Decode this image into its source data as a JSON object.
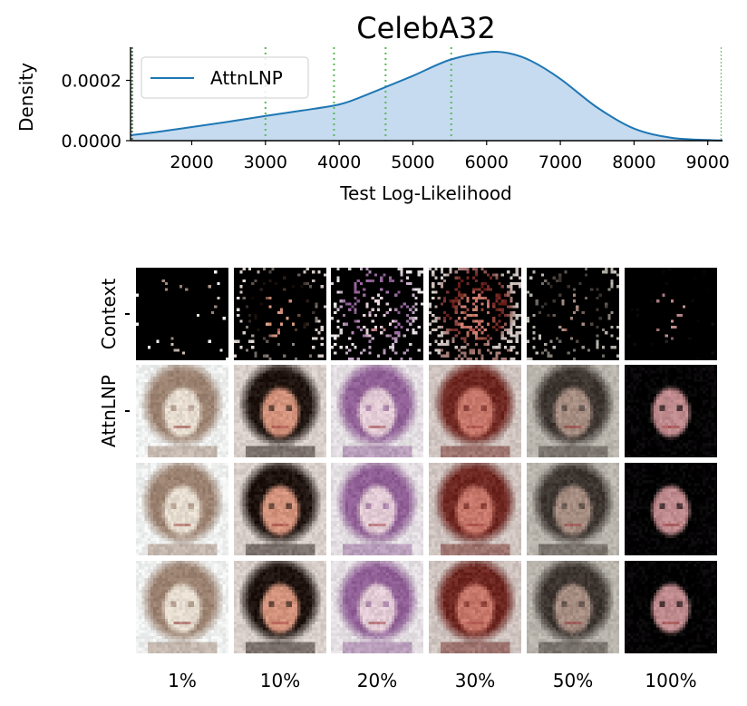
{
  "chart_data": {
    "type": "area",
    "title": "CelebA32",
    "xlabel": "Test Log-Likelihood",
    "ylabel": "Density",
    "xlim": [
      1170,
      9200
    ],
    "ylim": [
      0,
      0.00031
    ],
    "xticks": [
      "2000",
      "3000",
      "4000",
      "5000",
      "6000",
      "7000",
      "8000",
      "9000"
    ],
    "yticks": [
      "0.0000",
      "0.0002"
    ],
    "legend_position": "top-left",
    "series": [
      {
        "name": "AttnLNP",
        "x": [
          1170,
          1500,
          2000,
          2500,
          3000,
          3500,
          4000,
          4300,
          4600,
          5000,
          5500,
          6000,
          6300,
          6600,
          7000,
          7500,
          8000,
          8500,
          9000,
          9200
        ],
        "y": [
          1.8e-05,
          2.8e-05,
          4.5e-05,
          6.3e-05,
          8.2e-05,
          0.0001,
          0.00012,
          0.000145,
          0.000175,
          0.000215,
          0.000268,
          0.000293,
          0.00029,
          0.000265,
          0.000205,
          0.00011,
          4e-05,
          1e-05,
          2e-06,
          5e-07
        ]
      }
    ],
    "vlines": {
      "color": "#5cb85c",
      "x": [
        1180,
        3000,
        3930,
        4630,
        5520,
        9180
      ]
    },
    "fill_color": "#c6dbef",
    "line_color": "#1f77b4"
  },
  "grid": {
    "row_labels": [
      "Context",
      "AttnLNP"
    ],
    "column_labels": [
      "1%",
      "10%",
      "20%",
      "30%",
      "50%",
      "100%"
    ],
    "context_density": [
      0.02,
      0.1,
      0.2,
      0.3,
      0.1,
      0.05
    ],
    "background_colors": [
      "#eef0ef",
      "#d9cfca",
      "#e4dfe2",
      "#cfc4c0",
      "#b9b5ad",
      "#050205"
    ],
    "hair_colors": [
      "#9b8170",
      "#1f140f",
      "#8f5f95",
      "#6e2620",
      "#3d3530",
      "#000000"
    ],
    "face_colors": [
      "#e5dccf",
      "#d3937c",
      "#e2cbd4",
      "#c7776a",
      "#a68d82",
      "#bf8a8d"
    ]
  }
}
